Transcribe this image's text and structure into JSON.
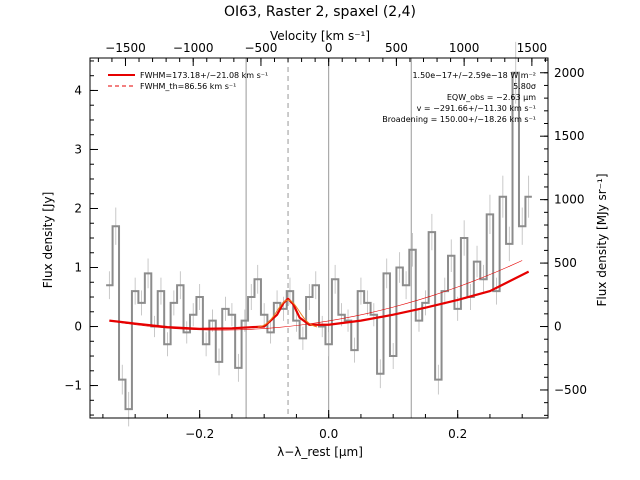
{
  "chart_data": {
    "type": "line",
    "title": "OI63, Raster 2, spaxel (2,4)",
    "xlabel": "λ−λ_rest [μm]",
    "ylabel": "Flux density [Jy]",
    "ylabel_right": "Flux density [MJy sr⁻¹]",
    "xlabel_top": "Velocity [km s⁻¹]",
    "xlim": [
      -0.37,
      0.34
    ],
    "ylim": [
      -1.55,
      4.55
    ],
    "xticks": [
      -0.2,
      0.0,
      0.2
    ],
    "xtick_labels": [
      "−0.2",
      "0.0",
      "0.2"
    ],
    "yticks": [
      -1,
      0,
      1,
      2,
      3,
      4
    ],
    "ytick_labels": [
      "−1",
      "0",
      "1",
      "2",
      "3",
      "4"
    ],
    "top_ticks": [
      -1500,
      -1000,
      -500,
      0,
      500,
      1000,
      1500
    ],
    "top_tick_labels": [
      "−1500",
      "−1000",
      "−500",
      "0",
      "500",
      "1000",
      "1500"
    ],
    "right_ticks": [
      -500,
      0,
      500,
      1000,
      1500,
      2000
    ],
    "right_tick_labels": [
      "−500",
      "0",
      "500",
      "1000",
      "1500",
      "2000"
    ],
    "vlines_solid": [
      -0.128,
      0.0,
      0.128
    ],
    "vline_dashed": -0.063,
    "legend": {
      "placement": "top-left",
      "entries": [
        "FWHM=173.18+/−21.08 km s⁻¹",
        "FWHM_th=86.56 km s⁻¹"
      ]
    },
    "annotations": [
      "1.50e−17+/−2.59e−18 W m⁻²",
      "5.80σ",
      "EQW_obs = −2.63 μm",
      "v = −291.66+/−11.30 km s⁻¹",
      "Broadening = 150.00+/−18.26 km s⁻¹"
    ],
    "series": [
      {
        "name": "Flux density",
        "x": [
          -0.34,
          -0.33,
          -0.32,
          -0.31,
          -0.3,
          -0.29,
          -0.28,
          -0.27,
          -0.26,
          -0.25,
          -0.24,
          -0.23,
          -0.22,
          -0.21,
          -0.2,
          -0.19,
          -0.18,
          -0.17,
          -0.16,
          -0.15,
          -0.14,
          -0.13,
          -0.12,
          -0.11,
          -0.1,
          -0.09,
          -0.08,
          -0.07,
          -0.06,
          -0.05,
          -0.04,
          -0.03,
          -0.02,
          -0.01,
          0.0,
          0.01,
          0.02,
          0.03,
          0.04,
          0.05,
          0.06,
          0.07,
          0.08,
          0.09,
          0.1,
          0.11,
          0.12,
          0.13,
          0.14,
          0.15,
          0.16,
          0.17,
          0.18,
          0.19,
          0.2,
          0.21,
          0.22,
          0.23,
          0.24,
          0.25,
          0.26,
          0.27,
          0.28,
          0.29,
          0.3,
          0.31
        ],
        "values": [
          0.7,
          1.7,
          -0.9,
          -1.4,
          0.6,
          0.4,
          0.9,
          0.0,
          0.6,
          -0.3,
          0.4,
          0.7,
          -0.1,
          0.2,
          0.5,
          -0.3,
          0.1,
          -0.6,
          0.3,
          0.2,
          -0.7,
          0.1,
          0.5,
          0.8,
          0.2,
          -0.1,
          0.4,
          0.3,
          0.6,
          0.1,
          -0.2,
          0.5,
          0.7,
          0.0,
          -0.3,
          0.8,
          0.2,
          0.1,
          -0.4,
          0.6,
          0.4,
          0.2,
          -0.8,
          0.9,
          -0.5,
          1.0,
          0.7,
          1.3,
          0.1,
          0.4,
          1.6,
          -0.9,
          0.6,
          1.2,
          0.3,
          1.5,
          0.5,
          1.1,
          0.8,
          1.9,
          0.6,
          2.2,
          1.4,
          4.3,
          1.7,
          2.2
        ]
      },
      {
        "name": "Fit",
        "x": [
          -0.34,
          -0.3,
          -0.25,
          -0.2,
          -0.15,
          -0.1,
          -0.08,
          -0.07,
          -0.063,
          -0.055,
          -0.045,
          -0.03,
          0.0,
          0.05,
          0.1,
          0.15,
          0.2,
          0.25,
          0.31
        ],
        "values": [
          0.1,
          0.05,
          -0.01,
          -0.04,
          -0.03,
          0.0,
          0.2,
          0.4,
          0.47,
          0.38,
          0.15,
          0.03,
          0.03,
          0.1,
          0.2,
          0.32,
          0.45,
          0.6,
          0.93
        ]
      }
    ]
  }
}
